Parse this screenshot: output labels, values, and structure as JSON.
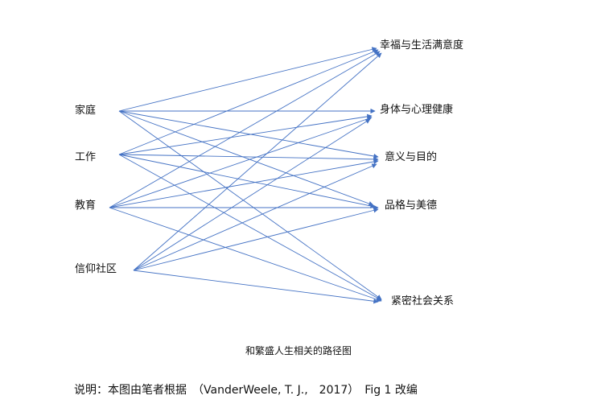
{
  "diagram": {
    "type": "path-diagram",
    "edge_color": "#4472c4",
    "sources": [
      "家庭",
      "工作",
      "教育",
      "信仰社区"
    ],
    "targets": [
      "幸福与生活满意度",
      "身体与心理健康",
      "意义与目的",
      "品格与美德",
      "紧密社会关系"
    ],
    "edges": "all sources → all targets"
  },
  "caption": "和繁盛人生相关的路径图",
  "note": "说明：本图由笔者根据　（VanderWeele, T. J.,　2017）　Fig 1 改编"
}
